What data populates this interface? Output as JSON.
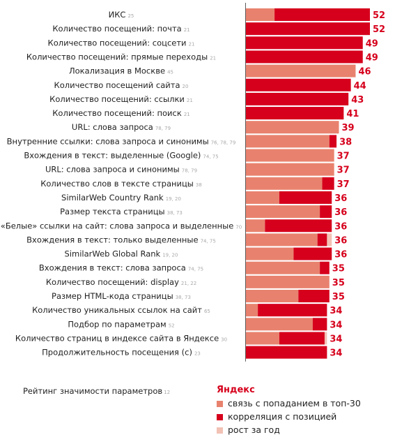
{
  "chart_data": {
    "type": "bar",
    "rows": [
      {
        "label": "ИКС",
        "ref": "25",
        "total": 52,
        "link": 12,
        "corr": 40,
        "growth": 0
      },
      {
        "label": "Количество посещений: почта",
        "ref": "21",
        "total": 52,
        "link": 0,
        "corr": 52,
        "growth": 0
      },
      {
        "label": "Количество посещений: соцсети",
        "ref": "21",
        "total": 49,
        "link": 0,
        "corr": 49,
        "growth": 0
      },
      {
        "label": "Количество посещений: прямые переходы",
        "ref": "21",
        "total": 49,
        "link": 0,
        "corr": 49,
        "growth": 0
      },
      {
        "label": "Локализация в Москве",
        "ref": "45",
        "total": 46,
        "link": 46,
        "corr": 0,
        "growth": 0
      },
      {
        "label": "Количество посещений сайта",
        "ref": "20",
        "total": 44,
        "link": 0,
        "corr": 44,
        "growth": 0
      },
      {
        "label": "Количество посещений: ссылки",
        "ref": "21",
        "total": 43,
        "link": 0,
        "corr": 43,
        "growth": 0
      },
      {
        "label": "Количество посещений: поиск",
        "ref": "21",
        "total": 41,
        "link": 0,
        "corr": 41,
        "growth": 0
      },
      {
        "label": "URL: слова запроса",
        "ref": "78, 79",
        "total": 39,
        "link": 39,
        "corr": 0,
        "growth": 0
      },
      {
        "label": "Внутренние ссылки: слова запроса и синонимы",
        "ref": "76, 78, 79",
        "total": 38,
        "link": 35,
        "corr": 3,
        "growth": 0
      },
      {
        "label": "Вхождения в текст: выделенные (Google)",
        "ref": "74, 75",
        "total": 37,
        "link": 37,
        "corr": 0,
        "growth": 0
      },
      {
        "label": "URL: слова запроса и синонимы",
        "ref": "78, 79",
        "total": 37,
        "link": 37,
        "corr": 0,
        "growth": 0
      },
      {
        "label": "Количество слов в тексте страницы",
        "ref": "38",
        "total": 37,
        "link": 32,
        "corr": 5,
        "growth": 0
      },
      {
        "label": "SimilarWeb Country Rank",
        "ref": "19, 20",
        "total": 36,
        "link": 14,
        "corr": 22,
        "growth": 0
      },
      {
        "label": "Размер текста страницы",
        "ref": "38, 73",
        "total": 36,
        "link": 31,
        "corr": 5,
        "growth": 0
      },
      {
        "label": "«Белые» ссылки на сайт: слова запроса и выделенные",
        "ref": "70",
        "total": 36,
        "link": 8,
        "corr": 28,
        "growth": 0
      },
      {
        "label": "Вхождения в текст: только выделенные",
        "ref": "74, 75",
        "total": 36,
        "link": 30,
        "corr": 4,
        "growth": 2
      },
      {
        "label": "SimilarWeb Global Rank",
        "ref": "19, 20",
        "total": 36,
        "link": 20,
        "corr": 16,
        "growth": 0
      },
      {
        "label": "Вхождения в текст: слова запроса",
        "ref": "74, 75",
        "total": 35,
        "link": 31,
        "corr": 4,
        "growth": 0
      },
      {
        "label": "Количество посещений: display",
        "ref": "21, 22",
        "total": 35,
        "link": 35,
        "corr": 0,
        "growth": 0
      },
      {
        "label": "Размер HTML-кода страницы",
        "ref": "38, 73",
        "total": 35,
        "link": 22,
        "corr": 13,
        "growth": 0
      },
      {
        "label": "Количество уникальных ссылок на сайт",
        "ref": "65",
        "total": 34,
        "link": 5,
        "corr": 29,
        "growth": 0
      },
      {
        "label": "Подбор по параметрам",
        "ref": "52",
        "total": 34,
        "link": 28,
        "corr": 6,
        "growth": 0
      },
      {
        "label": "Количество страниц в индексе сайта в Яндексе",
        "ref": "30",
        "total": 34,
        "link": 14,
        "corr": 19,
        "growth": 1
      },
      {
        "label": "Продолжительность посещения (с)",
        "ref": "23",
        "total": 34,
        "link": 0,
        "corr": 34,
        "growth": 0
      }
    ],
    "footer": {
      "label": "Рейтинг значимости параметров",
      "ref": "12"
    },
    "legend": {
      "title": "Яндекс",
      "items": [
        {
          "label": "связь с попаданием в топ-30",
          "color": "#e8826e"
        },
        {
          "label": "корреляция с позицией",
          "color": "#d6001c"
        },
        {
          "label": "рост за год",
          "color": "#f2c2b5"
        }
      ]
    },
    "colors": {
      "link": "#e8826e",
      "corr": "#d6001c",
      "growth": "#f2c2b5",
      "value": "#d6001c"
    }
  }
}
